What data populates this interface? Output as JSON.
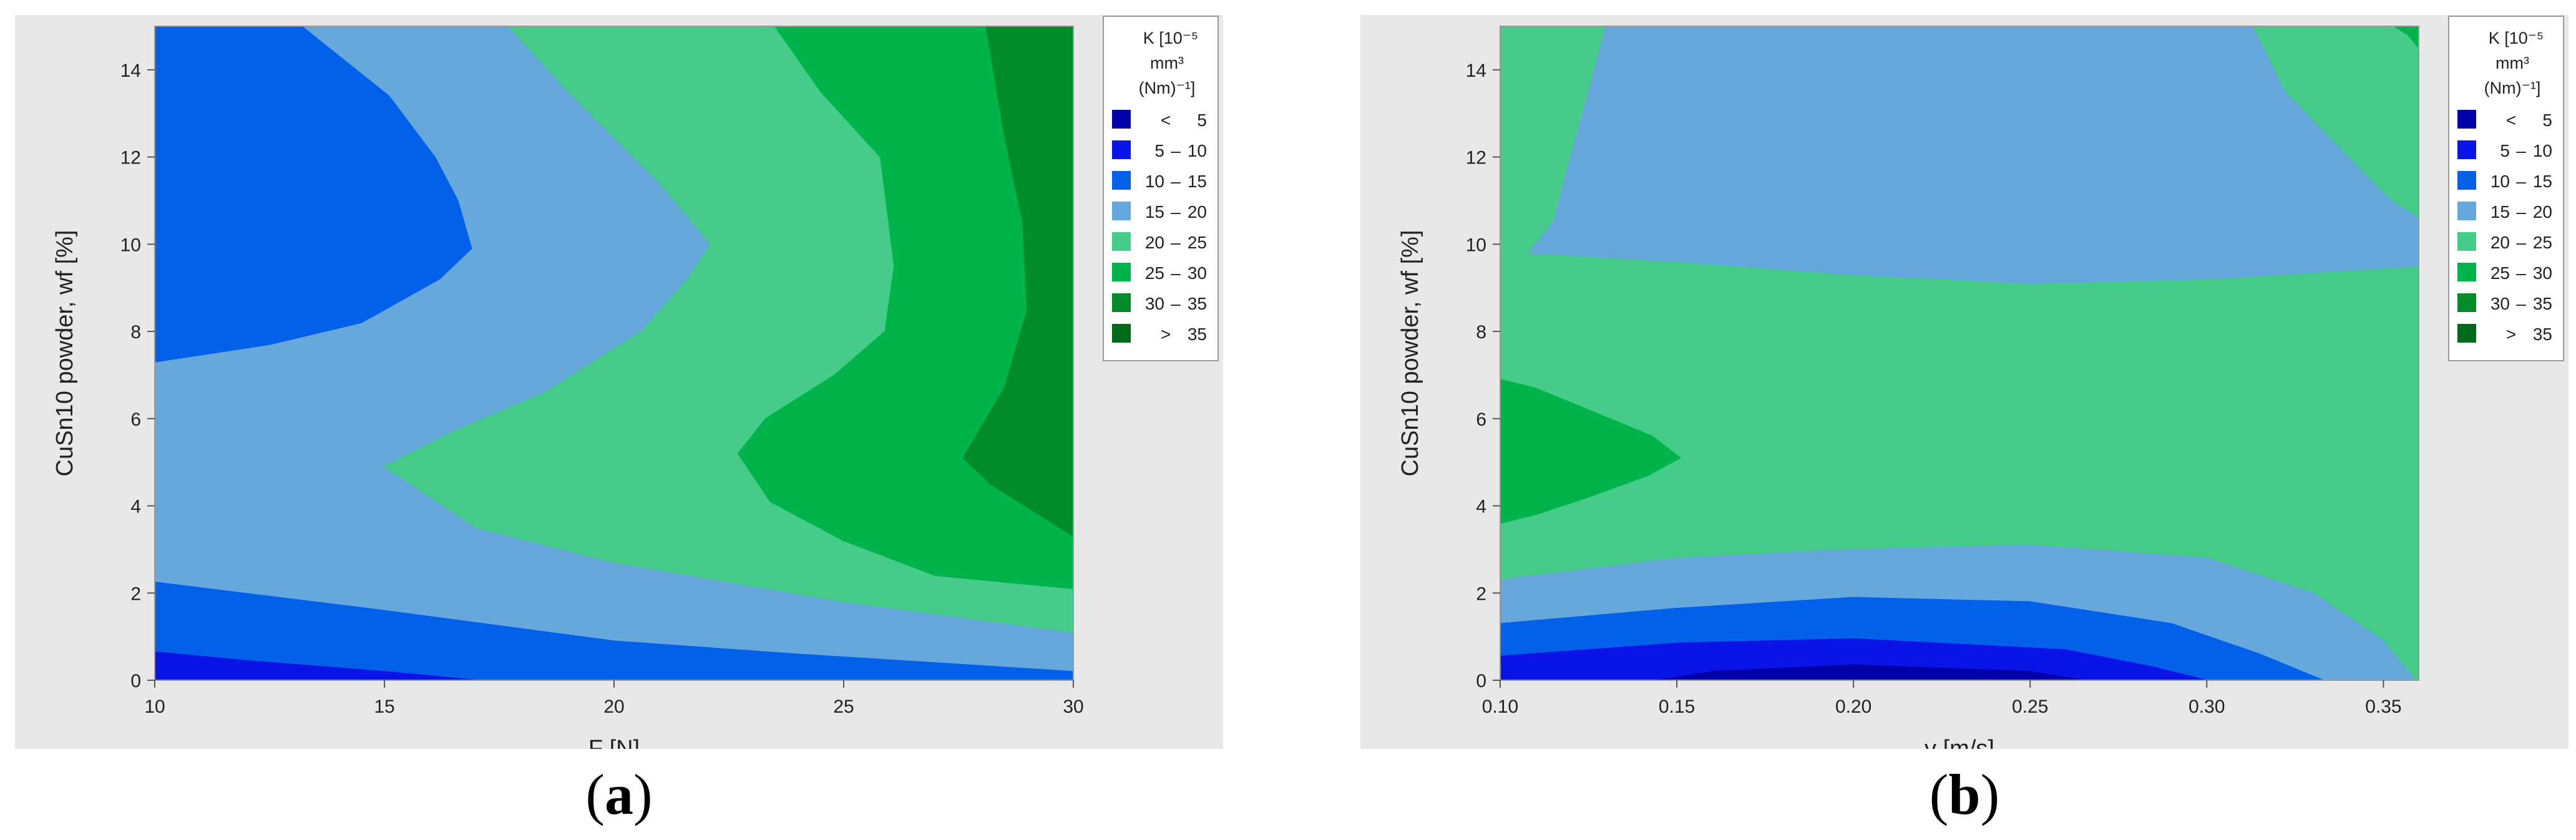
{
  "captions": {
    "a": "a",
    "b": "b"
  },
  "legend": {
    "title_line1": "K  [10⁻⁵",
    "title_line2": "mm³",
    "title_line3": "(Nm)⁻¹]",
    "items": [
      {
        "sym": "<",
        "lo": "",
        "hi": "5",
        "color": "#0000a8"
      },
      {
        "sym": "",
        "lo": "5",
        "hi": "10",
        "color": "#0a14e6"
      },
      {
        "sym": "",
        "lo": "10",
        "hi": "15",
        "color": "#0360e8"
      },
      {
        "sym": "",
        "lo": "15",
        "hi": "20",
        "color": "#66a8dc"
      },
      {
        "sym": "",
        "lo": "20",
        "hi": "25",
        "color": "#45cc88"
      },
      {
        "sym": "",
        "lo": "25",
        "hi": "30",
        "color": "#00b34a"
      },
      {
        "sym": "",
        "lo": "30",
        "hi": "35",
        "color": "#008c28"
      },
      {
        "sym": ">",
        "lo": "",
        "hi": "35",
        "color": "#006a1c"
      }
    ]
  },
  "chart_data": [
    {
      "type": "contour",
      "panel": "a",
      "xlabel": "F [N]",
      "ylabel": "CuSn10 powder, wf [%]",
      "xlim": [
        10,
        30
      ],
      "ylim": [
        0,
        15
      ],
      "x_ticks": [
        10,
        15,
        20,
        25,
        30
      ],
      "x_tick_labels": [
        "10",
        "15",
        "20",
        "25",
        "30"
      ],
      "y_ticks": [
        0,
        2,
        4,
        6,
        8,
        10,
        12,
        14
      ],
      "y_tick_labels": [
        "0",
        "2",
        "4",
        "6",
        "8",
        "10",
        "12",
        "14"
      ],
      "regions": [
        {
          "level": "15 - 20",
          "color": "#66a8dc",
          "points": [
            [
              10,
              0
            ],
            [
              30,
              0
            ],
            [
              30,
              15
            ],
            [
              10,
              15
            ]
          ]
        },
        {
          "level": "20 - 25",
          "color": "#45cc88",
          "points": [
            [
              17.7,
              15
            ],
            [
              30,
              15
            ],
            [
              30,
              1.1
            ],
            [
              25,
              1.8
            ],
            [
              20,
              2.7
            ],
            [
              17,
              3.5
            ],
            [
              15,
              4.9
            ],
            [
              16.5,
              5.7
            ],
            [
              18.5,
              6.6
            ],
            [
              20.6,
              8
            ],
            [
              21.6,
              9.2
            ],
            [
              22.1,
              10
            ],
            [
              21,
              11.4
            ],
            [
              19,
              13.5
            ],
            [
              17.7,
              15
            ]
          ]
        },
        {
          "level": "25 - 30",
          "color": "#00b34a",
          "points": [
            [
              23.5,
              15
            ],
            [
              30,
              15
            ],
            [
              30,
              2.1
            ],
            [
              27,
              2.4
            ],
            [
              25,
              3.2
            ],
            [
              23.4,
              4.1
            ],
            [
              22.7,
              5.2
            ],
            [
              23.3,
              6.0
            ],
            [
              24.8,
              7
            ],
            [
              25.9,
              8
            ],
            [
              26.1,
              9.5
            ],
            [
              25.8,
              12
            ],
            [
              24.5,
              13.5
            ],
            [
              23.5,
              15
            ]
          ]
        },
        {
          "level": "30 - 35",
          "color": "#008c28",
          "points": [
            [
              28.1,
              15
            ],
            [
              30,
              15
            ],
            [
              30,
              3.3
            ],
            [
              28.2,
              4.5
            ],
            [
              27.6,
              5.1
            ],
            [
              28.5,
              6.7
            ],
            [
              29.0,
              8.5
            ],
            [
              28.9,
              10.5
            ],
            [
              28.5,
              12.5
            ],
            [
              28.1,
              15
            ]
          ]
        },
        {
          "level": "10 - 15",
          "color": "#0360e8",
          "points": [
            [
              10,
              15
            ],
            [
              13.2,
              15
            ],
            [
              15.1,
              13.4
            ],
            [
              16.1,
              12
            ],
            [
              16.6,
              11
            ],
            [
              16.9,
              9.9
            ],
            [
              16.2,
              9.2
            ],
            [
              14.5,
              8.2
            ],
            [
              12.5,
              7.7
            ],
            [
              10,
              7.3
            ]
          ]
        },
        {
          "level": "10 - 15",
          "color": "#0360e8",
          "points": [
            [
              10,
              0
            ],
            [
              30,
              0
            ],
            [
              30,
              0.2
            ],
            [
              24,
              0.6
            ],
            [
              20,
              0.9
            ],
            [
              15,
              1.6
            ],
            [
              10,
              2.25
            ]
          ]
        },
        {
          "level": "5 - 10",
          "color": "#0a14e6",
          "points": [
            [
              10,
              0
            ],
            [
              17,
              0
            ],
            [
              15,
              0.2
            ],
            [
              12,
              0.45
            ],
            [
              10,
              0.65
            ]
          ]
        }
      ]
    },
    {
      "type": "contour",
      "panel": "b",
      "xlabel": "v [m/s]",
      "ylabel": "CuSn10 powder, wf [%]",
      "xlim": [
        0.1,
        0.36
      ],
      "ylim": [
        0,
        15
      ],
      "x_ticks": [
        0.1,
        0.15,
        0.2,
        0.25,
        0.3,
        0.35
      ],
      "x_tick_labels": [
        "0.10",
        "0.15",
        "0.20",
        "0.25",
        "0.30",
        "0.35"
      ],
      "y_ticks": [
        0,
        2,
        4,
        6,
        8,
        10,
        12,
        14
      ],
      "y_tick_labels": [
        "0",
        "2",
        "4",
        "6",
        "8",
        "10",
        "12",
        "14"
      ],
      "regions": [
        {
          "level": "20 - 25",
          "color": "#45cc88",
          "points": [
            [
              0.1,
              0
            ],
            [
              0.36,
              0
            ],
            [
              0.36,
              15
            ],
            [
              0.1,
              15
            ]
          ]
        },
        {
          "level": "15 - 20",
          "color": "#66a8dc",
          "points": [
            [
              0.13,
              15
            ],
            [
              0.313,
              15
            ],
            [
              0.322,
              13.5
            ],
            [
              0.34,
              12
            ],
            [
              0.352,
              11
            ],
            [
              0.36,
              10.6
            ],
            [
              0.36,
              9.5
            ],
            [
              0.3,
              9.2
            ],
            [
              0.25,
              9.1
            ],
            [
              0.2,
              9.3
            ],
            [
              0.15,
              9.6
            ],
            [
              0.108,
              9.8
            ],
            [
              0.115,
              10.5
            ],
            [
              0.12,
              12
            ],
            [
              0.13,
              15
            ]
          ]
        },
        {
          "level": "15 - 20",
          "color": "#66a8dc",
          "points": [
            [
              0.1,
              0
            ],
            [
              0.359,
              0
            ],
            [
              0.35,
              0.9
            ],
            [
              0.33,
              2.0
            ],
            [
              0.3,
              2.8
            ],
            [
              0.25,
              3.1
            ],
            [
              0.2,
              3.0
            ],
            [
              0.15,
              2.8
            ],
            [
              0.1,
              2.3
            ]
          ]
        },
        {
          "level": "10 - 15",
          "color": "#0360e8",
          "points": [
            [
              0.1,
              0
            ],
            [
              0.333,
              0
            ],
            [
              0.315,
              0.6
            ],
            [
              0.29,
              1.3
            ],
            [
              0.25,
              1.8
            ],
            [
              0.2,
              1.9
            ],
            [
              0.15,
              1.65
            ],
            [
              0.1,
              1.3
            ]
          ]
        },
        {
          "level": "5 - 10",
          "color": "#0a14e6",
          "points": [
            [
              0.1,
              0
            ],
            [
              0.3,
              0
            ],
            [
              0.285,
              0.3
            ],
            [
              0.26,
              0.7
            ],
            [
              0.2,
              0.95
            ],
            [
              0.15,
              0.85
            ],
            [
              0.1,
              0.55
            ]
          ]
        },
        {
          "level": "< 5",
          "color": "#0000a8",
          "points": [
            [
              0.145,
              0
            ],
            [
              0.265,
              0
            ],
            [
              0.25,
              0.2
            ],
            [
              0.2,
              0.35
            ],
            [
              0.16,
              0.2
            ]
          ]
        },
        {
          "level": "25 - 30",
          "color": "#00b34a",
          "points": [
            [
              0.1,
              3.6
            ],
            [
              0.11,
              3.8
            ],
            [
              0.125,
              4.2
            ],
            [
              0.142,
              4.7
            ],
            [
              0.151,
              5.1
            ],
            [
              0.143,
              5.6
            ],
            [
              0.125,
              6.2
            ],
            [
              0.11,
              6.7
            ],
            [
              0.1,
              6.9
            ]
          ]
        },
        {
          "level": "25 - 30",
          "color": "#00b34a",
          "points": [
            [
              0.353,
              15
            ],
            [
              0.36,
              15
            ],
            [
              0.36,
              14.5
            ],
            [
              0.357,
              14.8
            ]
          ]
        }
      ]
    }
  ]
}
